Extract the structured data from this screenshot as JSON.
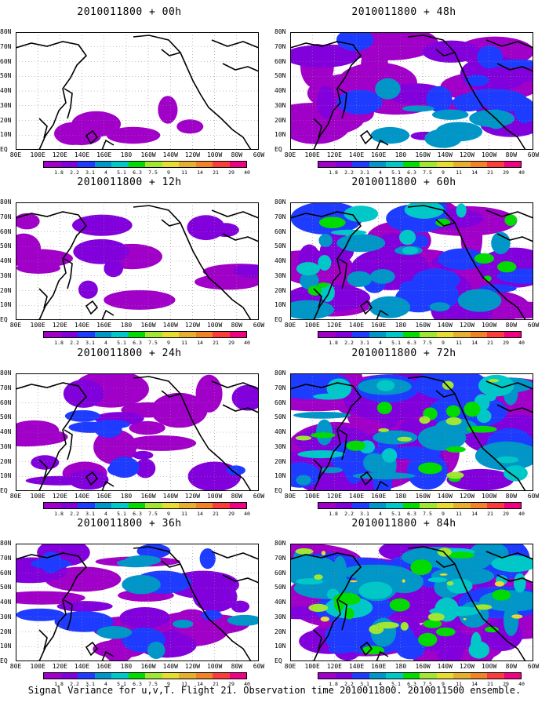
{
  "figure": {
    "caption": "Signal Variance for u,v,T. Flight 21. Observation time 2010011800. 2010011500 ensemble."
  },
  "map_axes": {
    "y_labels": [
      "80N",
      "70N",
      "60N",
      "50N",
      "40N",
      "30N",
      "20N",
      "10N",
      "EQ"
    ],
    "x_labels": [
      "80E",
      "100E",
      "120E",
      "140E",
      "160E",
      "180",
      "160W",
      "140W",
      "120W",
      "100W",
      "80W",
      "60W"
    ]
  },
  "colorbar": {
    "levels": [
      "1.8",
      "2.2",
      "3.1",
      "4",
      "5.1",
      "6.3",
      "7.5",
      "9",
      "11",
      "14",
      "21",
      "29",
      "40"
    ],
    "colors": [
      "#a000c8",
      "#8200dc",
      "#1e3cff",
      "#0096c8",
      "#00c8c8",
      "#00dc00",
      "#a0e632",
      "#e6dc32",
      "#e6af2d",
      "#f08228",
      "#fa3c3c",
      "#f00082"
    ]
  },
  "panels": [
    {
      "title": "2010011800 + 00h",
      "intensity": 0.12
    },
    {
      "title": "2010011800 + 48h",
      "intensity": 0.55
    },
    {
      "title": "2010011800 + 12h",
      "intensity": 0.22
    },
    {
      "title": "2010011800 + 60h",
      "intensity": 0.7
    },
    {
      "title": "2010011800 + 24h",
      "intensity": 0.35
    },
    {
      "title": "2010011800 + 72h",
      "intensity": 0.85
    },
    {
      "title": "2010011800 + 36h",
      "intensity": 0.45
    },
    {
      "title": "2010011800 + 84h",
      "intensity": 1.0
    }
  ]
}
